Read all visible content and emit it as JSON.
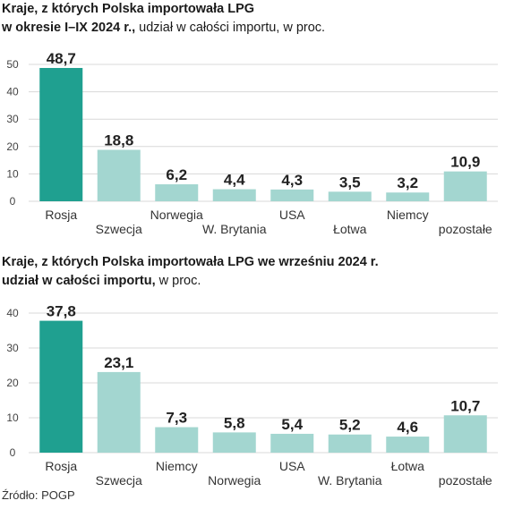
{
  "chart_data": [
    {
      "type": "bar",
      "title_bold_1": "Kraje, z których Polska importowała LPG",
      "title_bold_2": "w okresie I–IX 2024 r.,",
      "title_normal_2": " udział w całości importu, w proc.",
      "categories": [
        "Rosja",
        "Szwecja",
        "Norwegia",
        "W. Brytania",
        "USA",
        "Łotwa",
        "Niemcy",
        "pozostałe"
      ],
      "values": [
        48.7,
        18.8,
        6.2,
        4.4,
        4.3,
        3.5,
        3.2,
        10.9
      ],
      "value_labels": [
        "48,7",
        "18,8",
        "6,2",
        "4,4",
        "4,3",
        "3,5",
        "3,2",
        "10,9"
      ],
      "yticks": [
        "0",
        "10",
        "20",
        "30",
        "40",
        "50"
      ],
      "ylim": [
        0,
        50
      ],
      "highlight_color": "#1fa090",
      "bar_color": "#a3d6d0",
      "grid": true
    },
    {
      "type": "bar",
      "title_bold_1": "Kraje, z których Polska importowała LPG we wrześniu 2024 r.",
      "title_bold_2": "udział w całości importu,",
      "title_normal_2": " w proc.",
      "categories": [
        "Rosja",
        "Szwecja",
        "Niemcy",
        "Norwegia",
        "USA",
        "W. Brytania",
        "Łotwa",
        "pozostałe"
      ],
      "values": [
        37.8,
        23.1,
        7.3,
        5.8,
        5.4,
        5.2,
        4.6,
        10.7
      ],
      "value_labels": [
        "37,8",
        "23,1",
        "7,3",
        "5,8",
        "5,4",
        "5,2",
        "4,6",
        "10,7"
      ],
      "yticks": [
        "0",
        "10",
        "20",
        "30",
        "40"
      ],
      "ylim": [
        0,
        40
      ],
      "highlight_color": "#1fa090",
      "bar_color": "#a3d6d0",
      "grid": true
    }
  ],
  "source": "Źródło: POGP"
}
